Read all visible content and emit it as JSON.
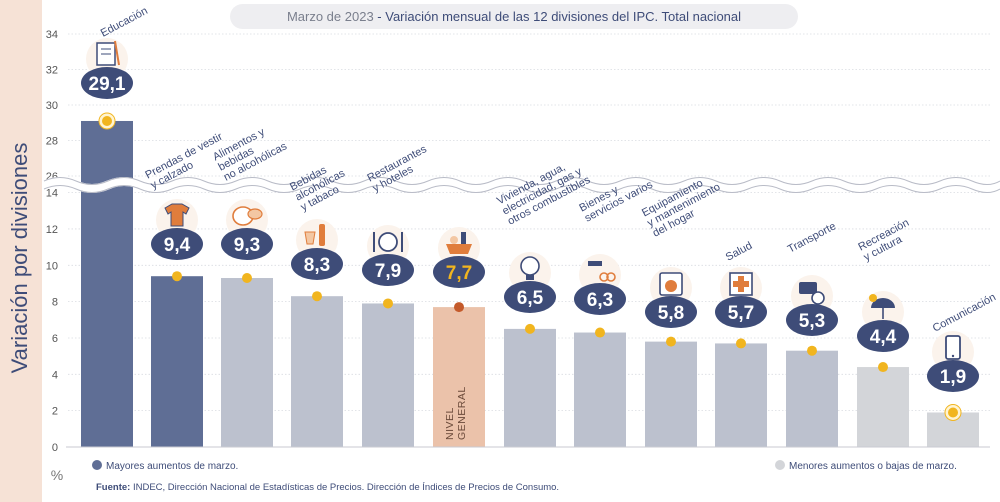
{
  "title_prefix": "Marzo de 2023",
  "title_rest": " - Variación mensual de las 12 divisiones del IPC. Total nacional",
  "legend": {
    "high": "Mayores aumentos de marzo.",
    "low": "Menores aumentos o bajas de marzo."
  },
  "source_label": "Fuente:",
  "source_text": " INDEC, Dirección Nacional de Estadísticas de Precios. Dirección de Índices de Precios de Consumo.",
  "colors": {
    "high": "#5f6e95",
    "mid": "#bcc1ce",
    "low": "#d3d5d9",
    "general": "#ebc2aa",
    "dot": "#f1b51f",
    "dot_general": "#c45a2b",
    "badge": "#3e4c78",
    "badge_general_text": "#f1b51f",
    "sidebar": "#f6e2d6"
  },
  "chart_data": {
    "type": "bar",
    "title": "Marzo de 2023 - Variación mensual de las 12 divisiones del IPC. Total nacional",
    "ylabel": "Variación por divisiones",
    "yunit": "%",
    "ylim": [
      0,
      34
    ],
    "axis_break": [
      14,
      26
    ],
    "yticks": [
      "0",
      "2",
      "4",
      "6",
      "8",
      "10",
      "12",
      "14",
      "26",
      "28",
      "30",
      "32",
      "34"
    ],
    "categories": [
      [
        "Educación"
      ],
      [
        "Prendas de vestir",
        "y calzado"
      ],
      [
        "Alimentos y",
        "bebidas",
        "no alcohólicas"
      ],
      [
        "Bebidas",
        "alcohólicas",
        "y tabaco"
      ],
      [
        "Restaurantes",
        "y hoteles"
      ],
      [
        "NIVEL",
        "GENERAL"
      ],
      [
        "Vivienda, agua,",
        "electricidad, gas y",
        "otros combustibles"
      ],
      [
        "Bienes y",
        "servicios varios"
      ],
      [
        "Equipamiento",
        "y mantenimiento",
        "del hogar"
      ],
      [
        "Salud"
      ],
      [
        "Transporte"
      ],
      [
        "Recreación",
        "y cultura"
      ],
      [
        "Comunicación"
      ]
    ],
    "values": [
      29.1,
      9.4,
      9.3,
      8.3,
      7.9,
      7.7,
      6.5,
      6.3,
      5.8,
      5.7,
      5.3,
      4.4,
      1.9
    ],
    "labels": [
      "29,1",
      "9,4",
      "9,3",
      "8,3",
      "7,9",
      "7,7",
      "6,5",
      "6,3",
      "5,8",
      "5,7",
      "5,3",
      "4,4",
      "1,9"
    ],
    "group": [
      "high",
      "high",
      "mid",
      "mid",
      "mid",
      "general",
      "mid",
      "mid",
      "mid",
      "mid",
      "mid",
      "low",
      "low"
    ],
    "icons": [
      "book-icon",
      "tshirt-icon",
      "food-icon",
      "bottle-icon",
      "cutlery-icon",
      "basket-icon",
      "bulb-icon",
      "comb-icon",
      "washer-icon",
      "health-cross-icon",
      "bus-icon",
      "umbrella-icon",
      "phone-icon"
    ]
  }
}
